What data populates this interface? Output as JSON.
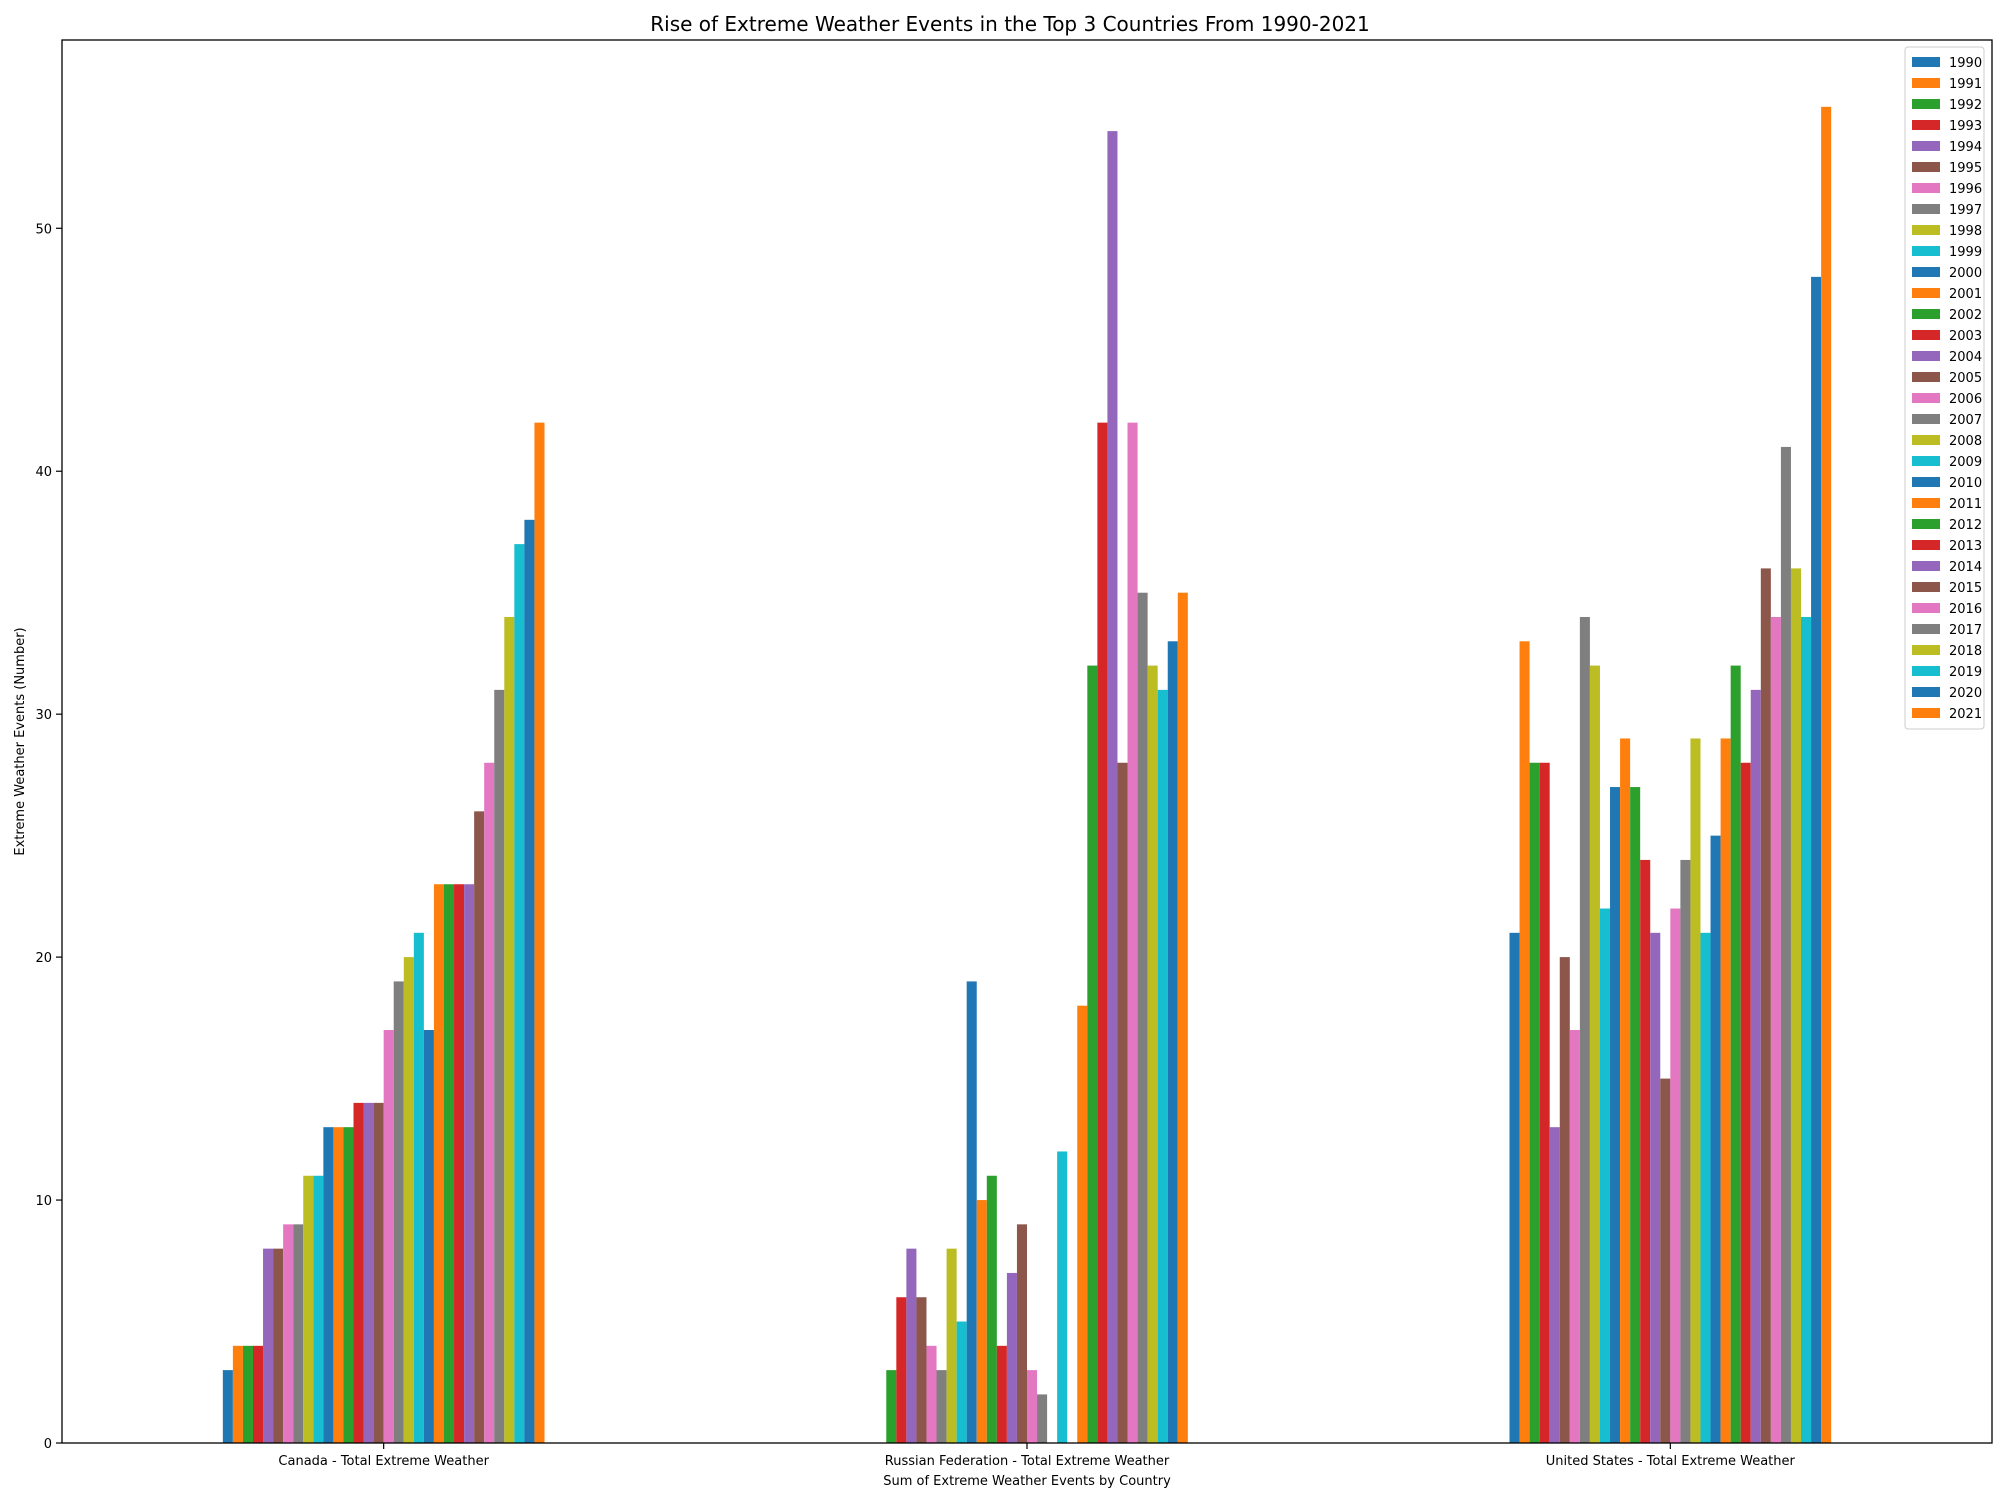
{
  "chart_data": {
    "type": "bar",
    "title": "Rise of Extreme Weather Events in the Top 3 Countries From 1990-2021",
    "xlabel": "Sum of Extreme Weather Events by Country",
    "ylabel": "Extreme Weather Events (Number)",
    "ylim": [
      0,
      57.75
    ],
    "yticks": [
      0,
      10,
      20,
      30,
      40,
      50
    ],
    "categories": [
      "Canada - Total Extreme Weather",
      "Russian Federation - Total Extreme Weather",
      "United States - Total Extreme Weather"
    ],
    "legend_position": "top-right",
    "series": [
      {
        "name": "1990",
        "color": "#1f77b4",
        "values": [
          3,
          0,
          21
        ]
      },
      {
        "name": "1991",
        "color": "#ff7f0e",
        "values": [
          4,
          0,
          33
        ]
      },
      {
        "name": "1992",
        "color": "#2ca02c",
        "values": [
          4,
          3,
          28
        ]
      },
      {
        "name": "1993",
        "color": "#d62728",
        "values": [
          4,
          6,
          28
        ]
      },
      {
        "name": "1994",
        "color": "#9467bd",
        "values": [
          8,
          8,
          13
        ]
      },
      {
        "name": "1995",
        "color": "#8c564b",
        "values": [
          8,
          6,
          20
        ]
      },
      {
        "name": "1996",
        "color": "#e377c2",
        "values": [
          9,
          4,
          17
        ]
      },
      {
        "name": "1997",
        "color": "#7f7f7f",
        "values": [
          9,
          3,
          34
        ]
      },
      {
        "name": "1998",
        "color": "#bcbd22",
        "values": [
          11,
          8,
          32
        ]
      },
      {
        "name": "1999",
        "color": "#17becf",
        "values": [
          11,
          5,
          22
        ]
      },
      {
        "name": "2000",
        "color": "#1f77b4",
        "values": [
          13,
          19,
          27
        ]
      },
      {
        "name": "2001",
        "color": "#ff7f0e",
        "values": [
          13,
          10,
          29
        ]
      },
      {
        "name": "2002",
        "color": "#2ca02c",
        "values": [
          13,
          11,
          27
        ]
      },
      {
        "name": "2003",
        "color": "#d62728",
        "values": [
          14,
          4,
          24
        ]
      },
      {
        "name": "2004",
        "color": "#9467bd",
        "values": [
          14,
          7,
          21
        ]
      },
      {
        "name": "2005",
        "color": "#8c564b",
        "values": [
          14,
          9,
          15
        ]
      },
      {
        "name": "2006",
        "color": "#e377c2",
        "values": [
          17,
          3,
          22
        ]
      },
      {
        "name": "2007",
        "color": "#7f7f7f",
        "values": [
          19,
          2,
          24
        ]
      },
      {
        "name": "2008",
        "color": "#bcbd22",
        "values": [
          20,
          0,
          29
        ]
      },
      {
        "name": "2009",
        "color": "#17becf",
        "values": [
          21,
          12,
          21
        ]
      },
      {
        "name": "2010",
        "color": "#1f77b4",
        "values": [
          17,
          0,
          25
        ]
      },
      {
        "name": "2011",
        "color": "#ff7f0e",
        "values": [
          23,
          18,
          29
        ]
      },
      {
        "name": "2012",
        "color": "#2ca02c",
        "values": [
          23,
          32,
          32
        ]
      },
      {
        "name": "2013",
        "color": "#d62728",
        "values": [
          23,
          42,
          28
        ]
      },
      {
        "name": "2014",
        "color": "#9467bd",
        "values": [
          23,
          54,
          31
        ]
      },
      {
        "name": "2015",
        "color": "#8c564b",
        "values": [
          26,
          28,
          36
        ]
      },
      {
        "name": "2016",
        "color": "#e377c2",
        "values": [
          28,
          42,
          34
        ]
      },
      {
        "name": "2017",
        "color": "#7f7f7f",
        "values": [
          31,
          35,
          41
        ]
      },
      {
        "name": "2018",
        "color": "#bcbd22",
        "values": [
          34,
          32,
          36
        ]
      },
      {
        "name": "2019",
        "color": "#17becf",
        "values": [
          37,
          31,
          34
        ]
      },
      {
        "name": "2020",
        "color": "#1f77b4",
        "values": [
          38,
          33,
          48
        ]
      },
      {
        "name": "2021",
        "color": "#ff7f0e",
        "values": [
          42,
          35,
          55
        ]
      }
    ]
  }
}
